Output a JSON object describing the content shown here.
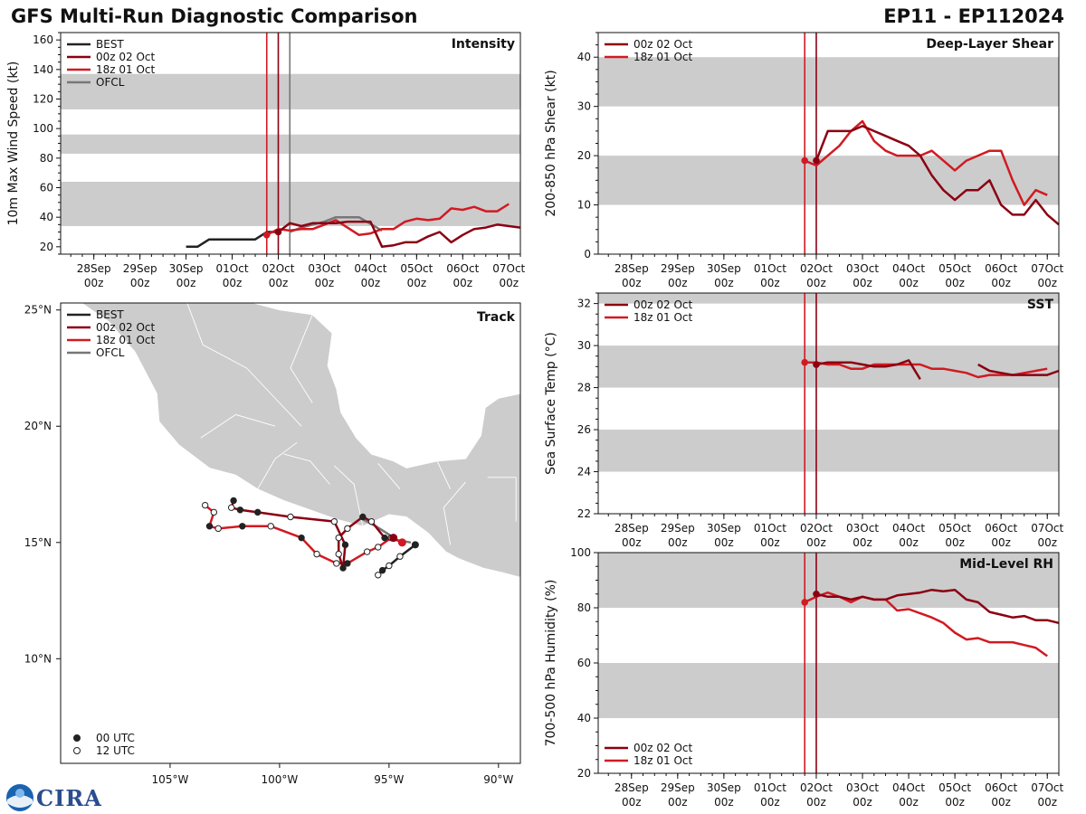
{
  "header": {
    "title": "GFS Multi-Run Diagnostic Comparison",
    "storm": "EP11 - EP112024"
  },
  "logo": {
    "text": "CIRA"
  },
  "colors": {
    "BEST": "#222222",
    "00z 02 Oct": "#8b0012",
    "18z 01 Oct": "#d11a22",
    "OFCL": "#777777",
    "band": "#cccccc"
  },
  "time_axis": {
    "labels": [
      "28Sep\n00z",
      "29Sep\n00z",
      "30Sep\n00z",
      "01Oct\n00z",
      "02Oct\n00z",
      "03Oct\n00z",
      "04Oct\n00z",
      "05Oct\n00z",
      "06Oct\n00z",
      "07Oct\n00z"
    ],
    "range_days": [
      -4.72,
      5.25
    ]
  },
  "chart_data": [
    {
      "id": "intensity",
      "type": "line",
      "title": "Intensity",
      "ylabel": "10m Max Wind Speed (kt)",
      "ylim": [
        15,
        165
      ],
      "yticks": [
        20,
        40,
        60,
        80,
        100,
        120,
        140,
        160
      ],
      "bands": [
        [
          34,
          64
        ],
        [
          83,
          96
        ],
        [
          113,
          137
        ]
      ],
      "vlines": [
        {
          "x": -0.25,
          "series": "18z 01 Oct"
        },
        {
          "x": 0,
          "series": "00z 02 Oct"
        },
        {
          "x": 0.25,
          "series": "OFCL"
        }
      ],
      "legend": [
        "BEST",
        "00z 02 Oct",
        "18z 01 Oct",
        "OFCL"
      ],
      "series": [
        {
          "name": "BEST",
          "x": [
            -2,
            -1.75,
            -1.5,
            -1.25,
            -1,
            -0.75,
            -0.5,
            -0.25,
            0
          ],
          "y": [
            20,
            20,
            25,
            25,
            25,
            25,
            25,
            30,
            30
          ]
        },
        {
          "name": "00z 02 Oct",
          "x": [
            0,
            0.25,
            0.5,
            0.75,
            1,
            1.25,
            1.5,
            1.75,
            2,
            2.25,
            2.5,
            2.75,
            3,
            3.25,
            3.5,
            3.75,
            4,
            4.25,
            4.5,
            4.75,
            5,
            5.25
          ],
          "y": [
            30,
            36,
            34,
            36,
            36,
            36,
            37,
            37,
            37,
            20,
            21,
            23,
            23,
            27,
            30,
            23,
            28,
            32,
            33,
            35,
            34,
            33
          ]
        },
        {
          "name": "18z 01 Oct",
          "x": [
            -0.25,
            0,
            0.25,
            0.5,
            0.75,
            1,
            1.25,
            1.5,
            1.75,
            2,
            2.25,
            2.5,
            2.75,
            3,
            3.25,
            3.5,
            3.75,
            4,
            4.25,
            4.5,
            4.75,
            5
          ],
          "y": [
            28,
            32,
            31,
            32,
            32,
            35,
            38,
            33,
            28,
            29,
            32,
            32,
            37,
            39,
            38,
            39,
            46,
            45,
            47,
            44,
            44,
            49
          ]
        },
        {
          "name": "OFCL",
          "x": [
            0.25,
            0.5,
            1,
            1.25,
            1.75,
            2.25
          ],
          "y": [
            30,
            33,
            37,
            40,
            40,
            31
          ]
        }
      ],
      "markers": [
        {
          "series": "18z 01 Oct",
          "x": -0.25,
          "y": 28
        },
        {
          "series": "00z 02 Oct",
          "x": 0,
          "y": 30
        }
      ]
    },
    {
      "id": "shear",
      "type": "line",
      "title": "Deep-Layer Shear",
      "ylabel": "200-850 hPa Shear (kt)",
      "ylim": [
        0,
        45
      ],
      "yticks": [
        0,
        10,
        20,
        30,
        40
      ],
      "bands": [
        [
          10,
          20
        ],
        [
          30,
          40
        ]
      ],
      "vlines": [
        {
          "x": -0.25,
          "series": "18z 01 Oct"
        },
        {
          "x": 0,
          "series": "00z 02 Oct"
        }
      ],
      "legend": [
        "00z 02 Oct",
        "18z 01 Oct"
      ],
      "series": [
        {
          "name": "00z 02 Oct",
          "x": [
            0,
            0.25,
            0.5,
            0.75,
            1,
            1.25,
            1.5,
            1.75,
            2,
            2.25,
            2.5,
            2.75,
            3,
            3.25,
            3.5,
            3.75,
            4,
            4.25,
            4.5,
            4.75,
            5,
            5.25
          ],
          "y": [
            19,
            25,
            25,
            25,
            26,
            25,
            24,
            23,
            22,
            20,
            16,
            13,
            11,
            13,
            13,
            15,
            10,
            8,
            8,
            11,
            8,
            6
          ]
        },
        {
          "name": "18z 01 Oct",
          "x": [
            -0.25,
            0,
            0.25,
            0.5,
            0.75,
            1,
            1.25,
            1.5,
            1.75,
            2,
            2.25,
            2.5,
            2.75,
            3,
            3.25,
            3.5,
            3.75,
            4,
            4.25,
            4.5,
            4.75,
            5
          ],
          "y": [
            19,
            18,
            20,
            22,
            25,
            27,
            23,
            21,
            20,
            20,
            20,
            21,
            19,
            17,
            19,
            20,
            21,
            21,
            15,
            10,
            13,
            12
          ]
        }
      ],
      "markers": [
        {
          "series": "18z 01 Oct",
          "x": -0.25,
          "y": 19
        },
        {
          "series": "00z 02 Oct",
          "x": 0,
          "y": 19
        }
      ]
    },
    {
      "id": "sst",
      "type": "line",
      "title": "SST",
      "ylabel": "Sea Surface Temp (°C)",
      "ylim": [
        22,
        32.5
      ],
      "yticks": [
        22,
        24,
        26,
        28,
        30,
        32
      ],
      "bands": [
        [
          24,
          26
        ],
        [
          28,
          30
        ],
        [
          32,
          32.5
        ]
      ],
      "vlines": [
        {
          "x": -0.25,
          "series": "18z 01 Oct"
        },
        {
          "x": 0,
          "series": "00z 02 Oct"
        }
      ],
      "legend": [
        "00z 02 Oct",
        "18z 01 Oct"
      ],
      "series": [
        {
          "name": "00z 02 Oct",
          "x": [
            0,
            0.25,
            0.5,
            0.75,
            1,
            1.25,
            1.5,
            1.75,
            2,
            2.25
          ],
          "y": [
            29.1,
            29.2,
            29.2,
            29.2,
            29.1,
            29.0,
            29.0,
            29.1,
            29.3,
            28.4
          ]
        },
        {
          "name": "00z 02 Oct",
          "x": [
            3.5,
            3.75,
            4,
            4.25,
            4.5,
            4.75,
            5,
            5.25
          ],
          "y": [
            29.1,
            28.8,
            28.7,
            28.6,
            28.6,
            28.6,
            28.6,
            28.8
          ]
        },
        {
          "name": "18z 01 Oct",
          "x": [
            -0.25,
            0,
            0.25,
            0.5,
            0.75,
            1,
            1.25,
            1.5,
            1.75,
            2,
            2.25,
            2.5,
            2.75,
            3,
            3.25,
            3.5,
            3.75,
            4,
            4.25,
            4.5,
            4.75,
            5
          ],
          "y": [
            29.2,
            29.2,
            29.1,
            29.1,
            28.9,
            28.9,
            29.1,
            29.1,
            29.1,
            29.1,
            29.1,
            28.9,
            28.9,
            28.8,
            28.7,
            28.5,
            28.6,
            28.6,
            28.6,
            28.7,
            28.8,
            28.9
          ]
        }
      ],
      "markers": [
        {
          "series": "18z 01 Oct",
          "x": -0.25,
          "y": 29.2
        },
        {
          "series": "00z 02 Oct",
          "x": 0,
          "y": 29.1
        }
      ]
    },
    {
      "id": "rh",
      "type": "line",
      "title": "Mid-Level RH",
      "ylabel": "700-500 hPa Humidity (%)",
      "ylim": [
        20,
        100
      ],
      "yticks": [
        20,
        40,
        60,
        80,
        100
      ],
      "bands": [
        [
          40,
          60
        ],
        [
          80,
          100
        ]
      ],
      "vlines": [
        {
          "x": -0.25,
          "series": "18z 01 Oct"
        },
        {
          "x": 0,
          "series": "00z 02 Oct"
        }
      ],
      "legend": [
        "00z 02 Oct",
        "18z 01 Oct"
      ],
      "series": [
        {
          "name": "00z 02 Oct",
          "x": [
            0,
            0.25,
            0.5,
            0.75,
            1,
            1.25,
            1.5,
            1.75,
            2,
            2.25,
            2.5,
            2.75,
            3,
            3.25,
            3.5,
            3.75,
            4,
            4.25,
            4.5,
            4.75,
            5,
            5.25
          ],
          "y": [
            85,
            84,
            84,
            83,
            84,
            83,
            83,
            84.5,
            85,
            85.5,
            86.5,
            86,
            86.5,
            83,
            82,
            78.5,
            77.5,
            76.5,
            77,
            75.5,
            75.5,
            74.5
          ]
        },
        {
          "name": "18z 01 Oct",
          "x": [
            -0.25,
            0,
            0.25,
            0.5,
            0.75,
            1,
            1.25,
            1.5,
            1.75,
            2,
            2.25,
            2.5,
            2.75,
            3,
            3.25,
            3.5,
            3.75,
            4,
            4.25,
            4.5,
            4.75,
            5
          ],
          "y": [
            82,
            84,
            85.5,
            84,
            82,
            84,
            83,
            83,
            79,
            79.5,
            78,
            76.5,
            74.5,
            71,
            68.5,
            69,
            67.5,
            67.5,
            67.5,
            66.5,
            65.5,
            62.5
          ]
        }
      ],
      "markers": [
        {
          "series": "18z 01 Oct",
          "x": -0.25,
          "y": 82
        },
        {
          "series": "00z 02 Oct",
          "x": 0,
          "y": 85
        }
      ]
    },
    {
      "id": "track",
      "type": "map-track",
      "title": "Track",
      "lon_range": [
        -110,
        -89
      ],
      "lat_range": [
        5.5,
        25.3
      ],
      "xticks": [
        -105,
        -100,
        -95,
        -90
      ],
      "xtick_labels": [
        "105°W",
        "100°W",
        "95°W",
        "90°W"
      ],
      "yticks": [
        10,
        15,
        20,
        25
      ],
      "ytick_labels": [
        "10°N",
        "15°N",
        "20°N",
        "25°N"
      ],
      "legend": [
        "BEST",
        "00z 02 Oct",
        "18z 01 Oct",
        "OFCL"
      ],
      "marker_legend": [
        "00 UTC",
        "12 UTC"
      ],
      "series": [
        {
          "name": "BEST",
          "lon": [
            -93.8,
            -94.5,
            -95.0,
            -95.3,
            -95.5
          ],
          "lat": [
            14.9,
            14.4,
            14.0,
            13.8,
            13.6
          ],
          "filled": [
            true,
            false,
            false,
            true,
            false
          ]
        },
        {
          "name": "OFCL",
          "lon": [
            -96.2,
            -95.6,
            -94.6,
            -94.0
          ],
          "lat": [
            16.0,
            15.7,
            15.1,
            15.0
          ]
        },
        {
          "name": "00z 02 Oct",
          "lon": [
            -94.8,
            -95.2,
            -95.8,
            -96.2,
            -96.9,
            -97.3,
            -97.3,
            -97.1,
            -97.0,
            -97.5,
            -99.5,
            -101.0,
            -101.8,
            -102.2,
            -102.1
          ],
          "lat": [
            15.2,
            15.2,
            15.9,
            16.1,
            15.6,
            15.2,
            14.5,
            13.9,
            14.9,
            15.9,
            16.1,
            16.3,
            16.4,
            16.5,
            16.8
          ],
          "filled": [
            true,
            true,
            false,
            true,
            false,
            false,
            false,
            true,
            true,
            false,
            false,
            true,
            true,
            false,
            true
          ]
        },
        {
          "name": "18z 01 Oct",
          "lon": [
            -94.4,
            -94.9,
            -95.5,
            -96.0,
            -96.9,
            -97.4,
            -98.3,
            -99.0,
            -100.4,
            -101.7,
            -102.8,
            -103.2,
            -103.0,
            -103.4
          ],
          "lat": [
            15.0,
            15.2,
            14.8,
            14.6,
            14.1,
            14.1,
            14.5,
            15.2,
            15.7,
            15.7,
            15.6,
            15.7,
            16.3,
            16.6
          ],
          "filled": [
            true,
            false,
            false,
            false,
            true,
            false,
            false,
            true,
            false,
            true,
            false,
            true,
            false,
            false
          ]
        }
      ]
    }
  ]
}
